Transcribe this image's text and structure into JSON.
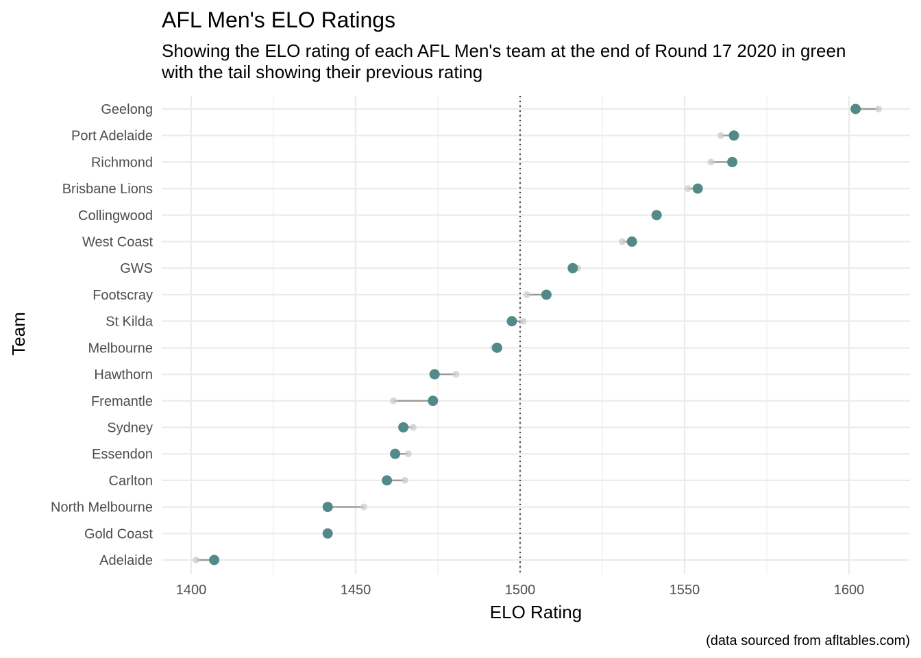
{
  "chart_data": {
    "type": "dot",
    "title": "AFL Men's ELO Ratings",
    "subtitle_line1": "Showing the ELO rating of each AFL Men's team at the end of Round 17  2020 in green",
    "subtitle_line2": "with the tail showing their previous rating",
    "xlabel": "ELO Rating",
    "ylabel": "Team",
    "caption": "(data sourced from afltables.com)",
    "xlim": [
      1392,
      1618
    ],
    "xticks": [
      1400,
      1450,
      1500,
      1550,
      1600
    ],
    "reference_line": 1500,
    "grid": true,
    "colors": {
      "current": "#528a8a",
      "previous": "#cccccc",
      "tail": "#999999"
    },
    "teams": [
      {
        "team": "Geelong",
        "current": 1602,
        "previous": 1609
      },
      {
        "team": "Port Adelaide",
        "current": 1565,
        "previous": 1561
      },
      {
        "team": "Richmond",
        "current": 1564.5,
        "previous": 1558
      },
      {
        "team": "Brisbane Lions",
        "current": 1554,
        "previous": 1551
      },
      {
        "team": "Collingwood",
        "current": 1541.5,
        "previous": 1541.5
      },
      {
        "team": "West Coast",
        "current": 1534,
        "previous": 1531
      },
      {
        "team": "GWS",
        "current": 1516,
        "previous": 1517.5
      },
      {
        "team": "Footscray",
        "current": 1508,
        "previous": 1502
      },
      {
        "team": "St Kilda",
        "current": 1497.5,
        "previous": 1501
      },
      {
        "team": "Melbourne",
        "current": 1493,
        "previous": 1492
      },
      {
        "team": "Hawthorn",
        "current": 1474,
        "previous": 1480.5
      },
      {
        "team": "Fremantle",
        "current": 1473.5,
        "previous": 1461.5
      },
      {
        "team": "Sydney",
        "current": 1464.5,
        "previous": 1467.5
      },
      {
        "team": "Essendon",
        "current": 1462,
        "previous": 1466
      },
      {
        "team": "Carlton",
        "current": 1459.5,
        "previous": 1465
      },
      {
        "team": "North Melbourne",
        "current": 1441.5,
        "previous": 1452.5
      },
      {
        "team": "Gold Coast",
        "current": 1441.5,
        "previous": 1441.5
      },
      {
        "team": "Adelaide",
        "current": 1407,
        "previous": 1401.5
      }
    ]
  }
}
